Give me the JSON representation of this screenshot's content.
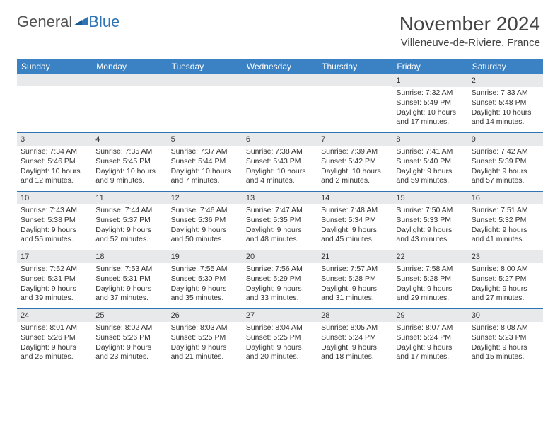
{
  "logo": {
    "text1": "General",
    "text2": "Blue"
  },
  "title": "November 2024",
  "location": "Villeneuve-de-Riviere, France",
  "colors": {
    "header_blue": "#3b82c4",
    "accent_blue": "#2f74b5",
    "day_bg": "#e8e9ea",
    "page_bg": "#ffffff",
    "text": "#333333"
  },
  "dayNames": [
    "Sunday",
    "Monday",
    "Tuesday",
    "Wednesday",
    "Thursday",
    "Friday",
    "Saturday"
  ],
  "weeks": [
    [
      {
        "blank": true
      },
      {
        "blank": true
      },
      {
        "blank": true
      },
      {
        "blank": true
      },
      {
        "blank": true
      },
      {
        "n": "1",
        "sr": "Sunrise: 7:32 AM",
        "ss": "Sunset: 5:49 PM",
        "dl": "Daylight: 10 hours and 17 minutes."
      },
      {
        "n": "2",
        "sr": "Sunrise: 7:33 AM",
        "ss": "Sunset: 5:48 PM",
        "dl": "Daylight: 10 hours and 14 minutes."
      }
    ],
    [
      {
        "n": "3",
        "sr": "Sunrise: 7:34 AM",
        "ss": "Sunset: 5:46 PM",
        "dl": "Daylight: 10 hours and 12 minutes."
      },
      {
        "n": "4",
        "sr": "Sunrise: 7:35 AM",
        "ss": "Sunset: 5:45 PM",
        "dl": "Daylight: 10 hours and 9 minutes."
      },
      {
        "n": "5",
        "sr": "Sunrise: 7:37 AM",
        "ss": "Sunset: 5:44 PM",
        "dl": "Daylight: 10 hours and 7 minutes."
      },
      {
        "n": "6",
        "sr": "Sunrise: 7:38 AM",
        "ss": "Sunset: 5:43 PM",
        "dl": "Daylight: 10 hours and 4 minutes."
      },
      {
        "n": "7",
        "sr": "Sunrise: 7:39 AM",
        "ss": "Sunset: 5:42 PM",
        "dl": "Daylight: 10 hours and 2 minutes."
      },
      {
        "n": "8",
        "sr": "Sunrise: 7:41 AM",
        "ss": "Sunset: 5:40 PM",
        "dl": "Daylight: 9 hours and 59 minutes."
      },
      {
        "n": "9",
        "sr": "Sunrise: 7:42 AM",
        "ss": "Sunset: 5:39 PM",
        "dl": "Daylight: 9 hours and 57 minutes."
      }
    ],
    [
      {
        "n": "10",
        "sr": "Sunrise: 7:43 AM",
        "ss": "Sunset: 5:38 PM",
        "dl": "Daylight: 9 hours and 55 minutes."
      },
      {
        "n": "11",
        "sr": "Sunrise: 7:44 AM",
        "ss": "Sunset: 5:37 PM",
        "dl": "Daylight: 9 hours and 52 minutes."
      },
      {
        "n": "12",
        "sr": "Sunrise: 7:46 AM",
        "ss": "Sunset: 5:36 PM",
        "dl": "Daylight: 9 hours and 50 minutes."
      },
      {
        "n": "13",
        "sr": "Sunrise: 7:47 AM",
        "ss": "Sunset: 5:35 PM",
        "dl": "Daylight: 9 hours and 48 minutes."
      },
      {
        "n": "14",
        "sr": "Sunrise: 7:48 AM",
        "ss": "Sunset: 5:34 PM",
        "dl": "Daylight: 9 hours and 45 minutes."
      },
      {
        "n": "15",
        "sr": "Sunrise: 7:50 AM",
        "ss": "Sunset: 5:33 PM",
        "dl": "Daylight: 9 hours and 43 minutes."
      },
      {
        "n": "16",
        "sr": "Sunrise: 7:51 AM",
        "ss": "Sunset: 5:32 PM",
        "dl": "Daylight: 9 hours and 41 minutes."
      }
    ],
    [
      {
        "n": "17",
        "sr": "Sunrise: 7:52 AM",
        "ss": "Sunset: 5:31 PM",
        "dl": "Daylight: 9 hours and 39 minutes."
      },
      {
        "n": "18",
        "sr": "Sunrise: 7:53 AM",
        "ss": "Sunset: 5:31 PM",
        "dl": "Daylight: 9 hours and 37 minutes."
      },
      {
        "n": "19",
        "sr": "Sunrise: 7:55 AM",
        "ss": "Sunset: 5:30 PM",
        "dl": "Daylight: 9 hours and 35 minutes."
      },
      {
        "n": "20",
        "sr": "Sunrise: 7:56 AM",
        "ss": "Sunset: 5:29 PM",
        "dl": "Daylight: 9 hours and 33 minutes."
      },
      {
        "n": "21",
        "sr": "Sunrise: 7:57 AM",
        "ss": "Sunset: 5:28 PM",
        "dl": "Daylight: 9 hours and 31 minutes."
      },
      {
        "n": "22",
        "sr": "Sunrise: 7:58 AM",
        "ss": "Sunset: 5:28 PM",
        "dl": "Daylight: 9 hours and 29 minutes."
      },
      {
        "n": "23",
        "sr": "Sunrise: 8:00 AM",
        "ss": "Sunset: 5:27 PM",
        "dl": "Daylight: 9 hours and 27 minutes."
      }
    ],
    [
      {
        "n": "24",
        "sr": "Sunrise: 8:01 AM",
        "ss": "Sunset: 5:26 PM",
        "dl": "Daylight: 9 hours and 25 minutes."
      },
      {
        "n": "25",
        "sr": "Sunrise: 8:02 AM",
        "ss": "Sunset: 5:26 PM",
        "dl": "Daylight: 9 hours and 23 minutes."
      },
      {
        "n": "26",
        "sr": "Sunrise: 8:03 AM",
        "ss": "Sunset: 5:25 PM",
        "dl": "Daylight: 9 hours and 21 minutes."
      },
      {
        "n": "27",
        "sr": "Sunrise: 8:04 AM",
        "ss": "Sunset: 5:25 PM",
        "dl": "Daylight: 9 hours and 20 minutes."
      },
      {
        "n": "28",
        "sr": "Sunrise: 8:05 AM",
        "ss": "Sunset: 5:24 PM",
        "dl": "Daylight: 9 hours and 18 minutes."
      },
      {
        "n": "29",
        "sr": "Sunrise: 8:07 AM",
        "ss": "Sunset: 5:24 PM",
        "dl": "Daylight: 9 hours and 17 minutes."
      },
      {
        "n": "30",
        "sr": "Sunrise: 8:08 AM",
        "ss": "Sunset: 5:23 PM",
        "dl": "Daylight: 9 hours and 15 minutes."
      }
    ]
  ]
}
